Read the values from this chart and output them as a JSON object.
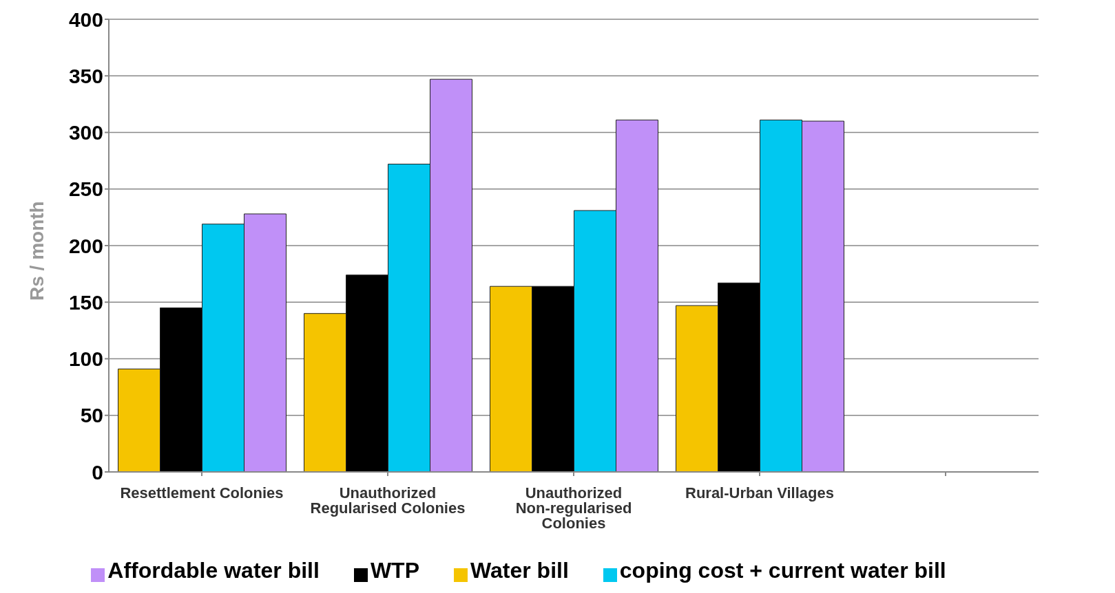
{
  "chart_data": {
    "type": "bar",
    "ylabel": "Rs / month",
    "categories": [
      "Resettlement Colonies",
      "Unauthorized Regularised Colonies",
      "Unauthorized Non-regularised Colonies",
      "Rural-Urban Villages",
      null
    ],
    "series": [
      {
        "name": "Water bill",
        "color": "#f5c400",
        "values": [
          91,
          140,
          164,
          147,
          null
        ]
      },
      {
        "name": "WTP",
        "color": "#000000",
        "values": [
          145,
          174,
          164,
          167,
          null
        ]
      },
      {
        "name": "coping cost + current water bill",
        "color": "#00c8f0",
        "values": [
          219,
          272,
          231,
          311,
          null
        ]
      },
      {
        "name": "Affordable water bill",
        "color": "#c090f8",
        "values": [
          228,
          347,
          311,
          310,
          null
        ]
      }
    ],
    "ylim": [
      0,
      400
    ],
    "yticks": [
      0,
      50,
      100,
      150,
      200,
      250,
      300,
      350,
      400
    ],
    "grid": "y",
    "legend": "bottom"
  }
}
